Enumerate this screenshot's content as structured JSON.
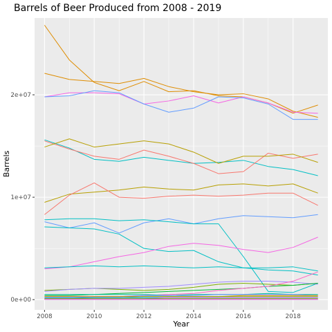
{
  "chart_data": {
    "type": "line",
    "title": "Barrels of Beer Produced from 2008 - 2019",
    "xlabel": "Year",
    "ylabel": "Barrels",
    "xlim": [
      2007.6,
      2019.4
    ],
    "ylim": [
      -1000000,
      27500000
    ],
    "x_ticks": [
      2008,
      2010,
      2012,
      2014,
      2016,
      2018
    ],
    "x_tick_labels": [
      "2008",
      "2010",
      "2012",
      "2014",
      "2016",
      "2018"
    ],
    "y_ticks": [
      0,
      10000000,
      20000000
    ],
    "y_tick_labels": [
      "0e+00",
      "1e+07",
      "2e+07"
    ],
    "grid": true,
    "legend": "none",
    "background": "#ebebeb",
    "x": [
      2008,
      2009,
      2010,
      2011,
      2012,
      2013,
      2014,
      2015,
      2016,
      2017,
      2018,
      2019
    ],
    "series": [
      {
        "color": "#de8c00",
        "values": [
          26800000,
          23400000,
          21200000,
          20400000,
          21300000,
          20300000,
          20400000,
          19900000,
          19800000,
          19200000,
          18200000,
          19000000
        ]
      },
      {
        "color": "#de8c00",
        "values": [
          22100000,
          21500000,
          21300000,
          21100000,
          21600000,
          20800000,
          20300000,
          20000000,
          20100000,
          19600000,
          18400000,
          17800000
        ]
      },
      {
        "color": "#f564e3",
        "values": [
          19800000,
          20200000,
          20200000,
          20100000,
          19100000,
          19400000,
          19900000,
          19200000,
          19800000,
          19200000,
          18300000,
          18200000
        ]
      },
      {
        "color": "#619cff",
        "values": [
          19800000,
          19900000,
          20400000,
          20200000,
          19100000,
          18300000,
          18700000,
          19800000,
          19700000,
          19100000,
          17600000,
          17600000
        ]
      },
      {
        "color": "#00bfc4",
        "values": [
          15600000,
          14800000,
          13700000,
          13500000,
          13900000,
          13600000,
          13300000,
          13400000,
          13600000,
          13000000,
          12700000,
          12100000
        ]
      },
      {
        "color": "#f8766d",
        "values": [
          15500000,
          14700000,
          14000000,
          13700000,
          14600000,
          14000000,
          13300000,
          12300000,
          12500000,
          14300000,
          13800000,
          14200000
        ]
      },
      {
        "color": "#b79f00",
        "values": [
          14900000,
          15700000,
          14900000,
          15200000,
          15500000,
          15200000,
          14400000,
          13300000,
          14000000,
          14000000,
          14200000,
          13400000
        ]
      },
      {
        "color": "#b79f00",
        "values": [
          9500000,
          10300000,
          10500000,
          10700000,
          11000000,
          10800000,
          10700000,
          11200000,
          11300000,
          11100000,
          11300000,
          10400000
        ]
      },
      {
        "color": "#f8766d",
        "values": [
          8300000,
          10200000,
          11400000,
          10000000,
          9900000,
          10100000,
          10200000,
          10100000,
          10200000,
          10400000,
          10400000,
          9200000
        ]
      },
      {
        "color": "#619cff",
        "values": [
          7600000,
          7000000,
          7500000,
          6500000,
          7500000,
          7900000,
          7400000,
          7900000,
          8200000,
          8100000,
          8000000,
          8300000
        ]
      },
      {
        "color": "#00bfc4",
        "values": [
          7800000,
          7900000,
          7900000,
          7700000,
          7800000,
          7600000,
          7400000,
          7400000,
          4200000,
          800000,
          700000,
          1600000
        ]
      },
      {
        "color": "#00bfc4",
        "values": [
          7100000,
          7000000,
          6900000,
          6400000,
          5000000,
          4700000,
          4800000,
          3700000,
          3100000,
          3100000,
          3200000,
          2800000
        ]
      },
      {
        "color": "#f564e3",
        "values": [
          3000000,
          3200000,
          3700000,
          4200000,
          4600000,
          5200000,
          5500000,
          5300000,
          4900000,
          4600000,
          5100000,
          6100000
        ]
      },
      {
        "color": "#00bfc4",
        "values": [
          3100000,
          3200000,
          3300000,
          3200000,
          3300000,
          3200000,
          3100000,
          3200000,
          3100000,
          2900000,
          2800000,
          2400000
        ]
      },
      {
        "color": "#7cae00",
        "values": [
          900000,
          1000000,
          1100000,
          1000000,
          900000,
          1000000,
          1200000,
          1500000,
          1600000,
          1500000,
          1400000,
          1600000
        ]
      },
      {
        "color": "#9f8cff",
        "values": [
          800000,
          1000000,
          1100000,
          1100000,
          1200000,
          1300000,
          1500000,
          1700000,
          1800000,
          1800000,
          1700000,
          1500000
        ]
      },
      {
        "color": "#00ba38",
        "values": [
          400000,
          400000,
          500000,
          600000,
          700000,
          800000,
          900000,
          1000000,
          1100000,
          1300000,
          1400000,
          1600000
        ]
      },
      {
        "color": "#ff61c3",
        "values": [
          300000,
          300000,
          300000,
          300000,
          400000,
          500000,
          600000,
          900000,
          1100000,
          1300000,
          1800000,
          2700000
        ]
      },
      {
        "color": "#00c19a",
        "values": [
          500000,
          500000,
          500000,
          500000,
          500000,
          400000,
          500000,
          500000,
          500000,
          600000,
          500000,
          500000
        ]
      },
      {
        "color": "#6d8eff",
        "values": [
          200000,
          200000,
          300000,
          300000,
          400000,
          400000,
          400000,
          500000,
          500000,
          500000,
          500000,
          400000
        ]
      },
      {
        "color": "#d39200",
        "values": [
          300000,
          300000,
          300000,
          300000,
          300000,
          300000,
          300000,
          300000,
          400000,
          400000,
          400000,
          400000
        ]
      },
      {
        "color": "#93aa00",
        "values": [
          100000,
          100000,
          200000,
          200000,
          300000,
          300000,
          300000,
          300000,
          300000,
          300000,
          300000,
          300000
        ]
      },
      {
        "color": "#00a9ff",
        "values": [
          200000,
          200000,
          200000,
          200000,
          200000,
          200000,
          200000,
          200000,
          200000,
          200000,
          200000,
          200000
        ]
      },
      {
        "color": "#db72fb",
        "values": [
          100000,
          100000,
          100000,
          100000,
          100000,
          200000,
          200000,
          200000,
          200000,
          200000,
          200000,
          200000
        ]
      },
      {
        "color": "#5eb300",
        "values": [
          100000,
          100000,
          100000,
          100000,
          100000,
          100000,
          100000,
          100000,
          100000,
          100000,
          100000,
          100000
        ]
      },
      {
        "color": "#ff6c91",
        "values": [
          50000,
          50000,
          50000,
          50000,
          50000,
          50000,
          50000,
          50000,
          50000,
          50000,
          50000,
          50000
        ]
      },
      {
        "color": "#00bb4e",
        "values": [
          20000,
          20000,
          20000,
          20000,
          20000,
          20000,
          20000,
          20000,
          20000,
          20000,
          20000,
          20000
        ]
      },
      {
        "color": "#e76bf3",
        "values": [
          10000,
          10000,
          10000,
          10000,
          10000,
          10000,
          10000,
          10000,
          10000,
          10000,
          10000,
          10000
        ]
      }
    ]
  }
}
